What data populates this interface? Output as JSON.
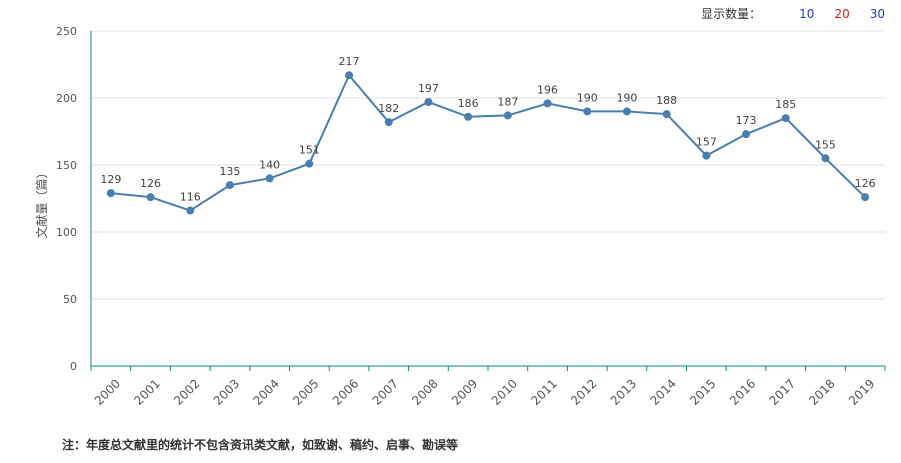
{
  "header": {
    "display_label": "显示数量：",
    "options": [
      "10",
      "20",
      "30"
    ],
    "option_colors": [
      "#1f3fbf",
      "#d0201a",
      "#1f3fbf"
    ]
  },
  "note": "注：年度总文献里的统计不包含资讯类文献，如致谢、稿约、启事、勘误等",
  "chart_data": {
    "type": "line",
    "ylabel": "文献量（篇）",
    "xlabel": "",
    "ylim": [
      0,
      250
    ],
    "yticks": [
      0,
      50,
      100,
      150,
      200,
      250
    ],
    "categories": [
      "2000",
      "2001",
      "2002",
      "2003",
      "2004",
      "2005",
      "2006",
      "2007",
      "2008",
      "2009",
      "2010",
      "2011",
      "2012",
      "2013",
      "2014",
      "2015",
      "2016",
      "2017",
      "2018",
      "2019"
    ],
    "values": [
      129,
      126,
      116,
      135,
      140,
      151,
      217,
      182,
      197,
      186,
      187,
      196,
      190,
      190,
      188,
      157,
      173,
      185,
      155,
      126
    ],
    "line_color": "#4a7eb0",
    "axis_color": "#0a8a7a",
    "grid": true
  }
}
